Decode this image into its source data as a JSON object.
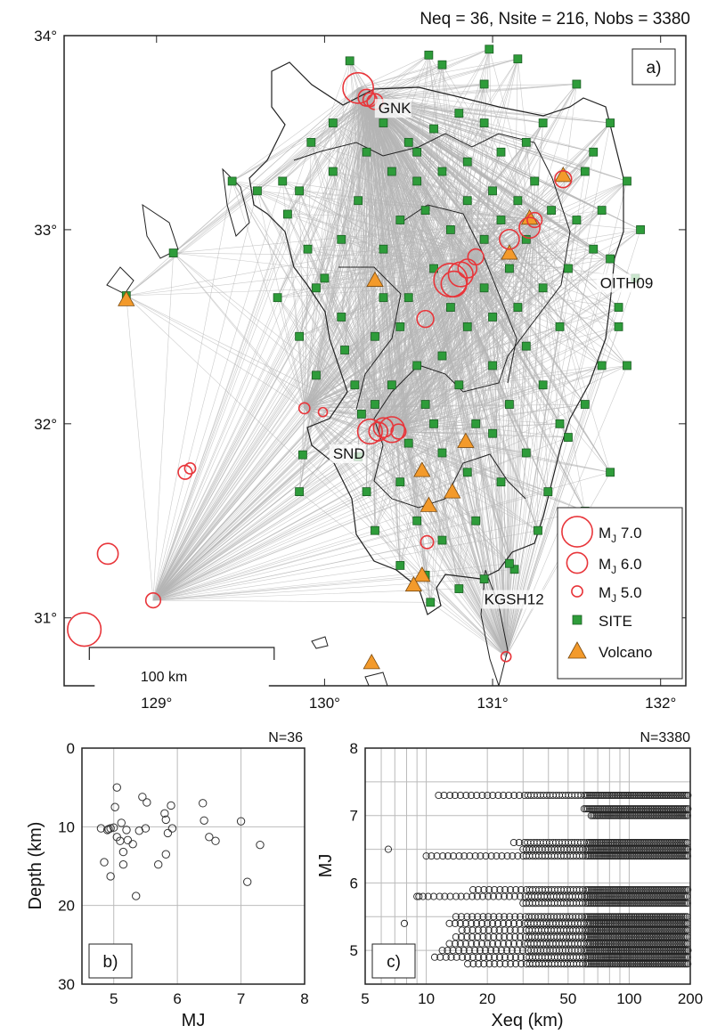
{
  "header": {
    "stats": "Neq = 36,  Nsite = 216,  Nobs = 3380"
  },
  "colors": {
    "eq": "#e8353a",
    "site": "#2e9c3a",
    "volcano": "#f39a2b",
    "ray": "#b5b5b5",
    "coast": "#222222"
  },
  "chart_data": [
    {
      "type": "scatter",
      "panel_label": "a)",
      "xlim": [
        128.45,
        132.15
      ],
      "ylim": [
        30.65,
        34.0
      ],
      "x_ticks": [
        {
          "v": 129,
          "label": "129°"
        },
        {
          "v": 130,
          "label": "130°"
        },
        {
          "v": 131,
          "label": "131°"
        },
        {
          "v": 132,
          "label": "132°"
        }
      ],
      "y_ticks": [
        {
          "v": 31,
          "label": "31°"
        },
        {
          "v": 32,
          "label": "32°"
        },
        {
          "v": 33,
          "label": "33°"
        },
        {
          "v": 34,
          "label": "34°"
        }
      ],
      "scale_bar": {
        "label": "100 km",
        "lon_start": 128.6,
        "lon_end": 129.7,
        "lat": 30.93
      },
      "station_labels": [
        {
          "text": "GNK",
          "lon": 130.32,
          "lat": 33.6
        },
        {
          "text": "OITH09",
          "lon": 131.64,
          "lat": 32.7
        },
        {
          "text": "SND",
          "lon": 130.05,
          "lat": 31.82
        },
        {
          "text": "KGSH12",
          "lon": 130.95,
          "lat": 31.07
        }
      ],
      "legend": {
        "placement": "bottom-right",
        "entries": [
          {
            "label": "MJ 7.0",
            "kind": "eq",
            "mag": 7.0
          },
          {
            "label": "MJ 6.0",
            "kind": "eq",
            "mag": 6.0
          },
          {
            "label": "MJ 5.0",
            "kind": "eq",
            "mag": 5.0
          },
          {
            "label": "SITE",
            "kind": "site"
          },
          {
            "label": "Volcano",
            "kind": "volcano"
          }
        ]
      },
      "earthquakes": [
        {
          "lon": 130.2,
          "lat": 33.73,
          "mag": 7.0
        },
        {
          "lon": 130.25,
          "lat": 33.68,
          "mag": 5.6
        },
        {
          "lon": 130.27,
          "lat": 33.67,
          "mag": 5.3
        },
        {
          "lon": 130.3,
          "lat": 33.66,
          "mag": 5.5
        },
        {
          "lon": 128.57,
          "lat": 30.94,
          "mag": 7.3
        },
        {
          "lon": 128.71,
          "lat": 31.33,
          "mag": 6.0
        },
        {
          "lon": 128.98,
          "lat": 31.09,
          "mag": 5.4
        },
        {
          "lon": 129.17,
          "lat": 31.75,
          "mag": 5.3
        },
        {
          "lon": 129.2,
          "lat": 31.77,
          "mag": 5.0
        },
        {
          "lon": 129.88,
          "lat": 32.08,
          "mag": 5.0
        },
        {
          "lon": 129.99,
          "lat": 32.06,
          "mag": 4.8
        },
        {
          "lon": 130.27,
          "lat": 31.96,
          "mag": 6.4
        },
        {
          "lon": 130.32,
          "lat": 31.96,
          "mag": 5.8
        },
        {
          "lon": 130.35,
          "lat": 31.98,
          "mag": 5.9
        },
        {
          "lon": 130.4,
          "lat": 31.97,
          "mag": 6.5
        },
        {
          "lon": 130.44,
          "lat": 31.96,
          "mag": 5.4
        },
        {
          "lon": 130.6,
          "lat": 32.54,
          "mag": 5.6
        },
        {
          "lon": 130.75,
          "lat": 32.74,
          "mag": 7.3
        },
        {
          "lon": 130.77,
          "lat": 32.72,
          "mag": 6.5
        },
        {
          "lon": 130.81,
          "lat": 32.77,
          "mag": 6.4
        },
        {
          "lon": 130.85,
          "lat": 32.8,
          "mag": 5.8
        },
        {
          "lon": 130.9,
          "lat": 32.86,
          "mag": 5.5
        },
        {
          "lon": 131.1,
          "lat": 32.95,
          "mag": 5.9
        },
        {
          "lon": 131.22,
          "lat": 33.01,
          "mag": 6.0
        },
        {
          "lon": 131.25,
          "lat": 33.05,
          "mag": 5.4
        },
        {
          "lon": 131.42,
          "lat": 33.26,
          "mag": 5.6
        },
        {
          "lon": 130.61,
          "lat": 31.39,
          "mag": 5.2
        },
        {
          "lon": 131.08,
          "lat": 30.8,
          "mag": 4.9
        }
      ],
      "volcanoes": [
        {
          "lon": 128.82,
          "lat": 32.64
        },
        {
          "lon": 130.3,
          "lat": 32.74
        },
        {
          "lon": 130.84,
          "lat": 31.91
        },
        {
          "lon": 131.1,
          "lat": 32.88
        },
        {
          "lon": 131.22,
          "lat": 33.06
        },
        {
          "lon": 131.42,
          "lat": 33.28
        },
        {
          "lon": 130.62,
          "lat": 31.58
        },
        {
          "lon": 130.58,
          "lat": 31.76
        },
        {
          "lon": 130.76,
          "lat": 31.65
        },
        {
          "lon": 130.58,
          "lat": 31.22
        },
        {
          "lon": 130.53,
          "lat": 31.17
        },
        {
          "lon": 130.28,
          "lat": 30.77
        }
      ],
      "sites": [
        {
          "lon": 130.15,
          "lat": 33.87
        },
        {
          "lon": 130.62,
          "lat": 33.9
        },
        {
          "lon": 130.7,
          "lat": 33.85
        },
        {
          "lon": 130.98,
          "lat": 33.93
        },
        {
          "lon": 131.15,
          "lat": 33.88
        },
        {
          "lon": 131.5,
          "lat": 33.75
        },
        {
          "lon": 131.7,
          "lat": 33.55
        },
        {
          "lon": 131.6,
          "lat": 33.4
        },
        {
          "lon": 131.55,
          "lat": 33.3
        },
        {
          "lon": 131.8,
          "lat": 33.25
        },
        {
          "lon": 131.88,
          "lat": 33.0
        },
        {
          "lon": 131.7,
          "lat": 32.85
        },
        {
          "lon": 131.85,
          "lat": 32.75
        },
        {
          "lon": 131.75,
          "lat": 32.5
        },
        {
          "lon": 131.65,
          "lat": 32.3
        },
        {
          "lon": 131.55,
          "lat": 32.1
        },
        {
          "lon": 131.45,
          "lat": 31.93
        },
        {
          "lon": 131.33,
          "lat": 31.65
        },
        {
          "lon": 131.27,
          "lat": 31.45
        },
        {
          "lon": 131.13,
          "lat": 31.25
        },
        {
          "lon": 130.95,
          "lat": 31.2
        },
        {
          "lon": 130.8,
          "lat": 31.15
        },
        {
          "lon": 130.6,
          "lat": 31.22
        },
        {
          "lon": 130.45,
          "lat": 31.27
        },
        {
          "lon": 130.3,
          "lat": 31.45
        },
        {
          "lon": 130.25,
          "lat": 31.65
        },
        {
          "lon": 130.2,
          "lat": 31.83
        },
        {
          "lon": 130.22,
          "lat": 32.05
        },
        {
          "lon": 130.18,
          "lat": 32.2
        },
        {
          "lon": 130.12,
          "lat": 32.38
        },
        {
          "lon": 130.1,
          "lat": 32.55
        },
        {
          "lon": 129.95,
          "lat": 32.7
        },
        {
          "lon": 129.9,
          "lat": 32.9
        },
        {
          "lon": 129.78,
          "lat": 33.08
        },
        {
          "lon": 129.75,
          "lat": 33.25
        },
        {
          "lon": 129.92,
          "lat": 33.45
        },
        {
          "lon": 130.05,
          "lat": 33.55
        },
        {
          "lon": 130.35,
          "lat": 33.55
        },
        {
          "lon": 130.5,
          "lat": 33.45
        },
        {
          "lon": 130.65,
          "lat": 33.52
        },
        {
          "lon": 130.8,
          "lat": 33.6
        },
        {
          "lon": 130.95,
          "lat": 33.55
        },
        {
          "lon": 131.05,
          "lat": 33.4
        },
        {
          "lon": 131.2,
          "lat": 33.45
        },
        {
          "lon": 131.3,
          "lat": 33.55
        },
        {
          "lon": 130.4,
          "lat": 33.3
        },
        {
          "lon": 130.55,
          "lat": 33.25
        },
        {
          "lon": 130.7,
          "lat": 33.3
        },
        {
          "lon": 130.85,
          "lat": 33.35
        },
        {
          "lon": 131.0,
          "lat": 33.2
        },
        {
          "lon": 131.15,
          "lat": 33.15
        },
        {
          "lon": 131.35,
          "lat": 33.1
        },
        {
          "lon": 131.5,
          "lat": 33.05
        },
        {
          "lon": 131.6,
          "lat": 32.9
        },
        {
          "lon": 131.45,
          "lat": 32.8
        },
        {
          "lon": 131.3,
          "lat": 32.7
        },
        {
          "lon": 131.15,
          "lat": 32.6
        },
        {
          "lon": 131.0,
          "lat": 32.55
        },
        {
          "lon": 130.85,
          "lat": 32.5
        },
        {
          "lon": 130.7,
          "lat": 32.35
        },
        {
          "lon": 130.55,
          "lat": 32.3
        },
        {
          "lon": 130.4,
          "lat": 32.2
        },
        {
          "lon": 130.6,
          "lat": 32.1
        },
        {
          "lon": 130.8,
          "lat": 32.2
        },
        {
          "lon": 131.0,
          "lat": 32.3
        },
        {
          "lon": 131.2,
          "lat": 32.4
        },
        {
          "lon": 131.4,
          "lat": 32.5
        },
        {
          "lon": 131.3,
          "lat": 32.2
        },
        {
          "lon": 131.1,
          "lat": 32.1
        },
        {
          "lon": 130.9,
          "lat": 32.0
        },
        {
          "lon": 130.7,
          "lat": 31.85
        },
        {
          "lon": 130.5,
          "lat": 31.9
        },
        {
          "lon": 130.45,
          "lat": 31.7
        },
        {
          "lon": 130.55,
          "lat": 31.5
        },
        {
          "lon": 130.7,
          "lat": 31.4
        },
        {
          "lon": 130.9,
          "lat": 31.5
        },
        {
          "lon": 131.05,
          "lat": 31.7
        },
        {
          "lon": 131.2,
          "lat": 31.85
        },
        {
          "lon": 131.4,
          "lat": 32.0
        },
        {
          "lon": 130.35,
          "lat": 32.9
        },
        {
          "lon": 130.45,
          "lat": 33.05
        },
        {
          "lon": 130.6,
          "lat": 33.1
        },
        {
          "lon": 130.75,
          "lat": 33.0
        },
        {
          "lon": 130.95,
          "lat": 32.95
        },
        {
          "lon": 131.1,
          "lat": 32.8
        },
        {
          "lon": 130.5,
          "lat": 32.65
        },
        {
          "lon": 130.65,
          "lat": 32.8
        },
        {
          "lon": 130.2,
          "lat": 33.15
        },
        {
          "lon": 130.05,
          "lat": 33.3
        },
        {
          "lon": 129.85,
          "lat": 33.2
        },
        {
          "lon": 129.6,
          "lat": 33.2
        },
        {
          "lon": 129.45,
          "lat": 33.25
        },
        {
          "lon": 129.1,
          "lat": 32.88
        },
        {
          "lon": 128.82,
          "lat": 32.66
        },
        {
          "lon": 129.72,
          "lat": 32.65
        },
        {
          "lon": 129.85,
          "lat": 32.45
        },
        {
          "lon": 129.95,
          "lat": 32.25
        },
        {
          "lon": 130.0,
          "lat": 32.75
        },
        {
          "lon": 130.3,
          "lat": 32.45
        },
        {
          "lon": 130.45,
          "lat": 32.5
        },
        {
          "lon": 129.87,
          "lat": 31.84
        },
        {
          "lon": 129.85,
          "lat": 31.65
        },
        {
          "lon": 130.35,
          "lat": 32.65
        },
        {
          "lon": 131.8,
          "lat": 32.3
        },
        {
          "lon": 131.7,
          "lat": 31.75
        },
        {
          "lon": 131.55,
          "lat": 31.55
        },
        {
          "lon": 130.63,
          "lat": 31.08
        },
        {
          "lon": 131.1,
          "lat": 31.28
        },
        {
          "lon": 130.95,
          "lat": 33.75
        },
        {
          "lon": 131.25,
          "lat": 33.25
        },
        {
          "lon": 131.65,
          "lat": 33.1
        },
        {
          "lon": 131.75,
          "lat": 32.6
        },
        {
          "lon": 130.25,
          "lat": 33.4
        },
        {
          "lon": 130.1,
          "lat": 32.95
        },
        {
          "lon": 130.3,
          "lat": 32.1
        },
        {
          "lon": 130.85,
          "lat": 31.75
        },
        {
          "lon": 131.0,
          "lat": 31.95
        },
        {
          "lon": 130.65,
          "lat": 32.0
        },
        {
          "lon": 130.75,
          "lat": 32.6
        },
        {
          "lon": 130.95,
          "lat": 32.7
        },
        {
          "lon": 131.2,
          "lat": 32.95
        },
        {
          "lon": 130.85,
          "lat": 33.15
        },
        {
          "lon": 130.55,
          "lat": 33.4
        },
        {
          "lon": 131.05,
          "lat": 33.05
        }
      ]
    },
    {
      "type": "scatter",
      "panel_label": "b)",
      "n_label": "N=36",
      "xlabel": "MJ",
      "ylabel": "Depth (km)",
      "xlim": [
        4.5,
        8
      ],
      "ylim": [
        0,
        30
      ],
      "y_inverted": true,
      "x_ticks": [
        5,
        6,
        7,
        8
      ],
      "y_ticks": [
        0,
        10,
        20,
        30
      ],
      "grid": true,
      "points": [
        {
          "x": 4.8,
          "y": 10.2
        },
        {
          "x": 4.85,
          "y": 14.5
        },
        {
          "x": 4.9,
          "y": 10.4
        },
        {
          "x": 4.92,
          "y": 10.3
        },
        {
          "x": 4.95,
          "y": 16.3
        },
        {
          "x": 5.0,
          "y": 10.1
        },
        {
          "x": 5.02,
          "y": 7.5
        },
        {
          "x": 5.05,
          "y": 5.0
        },
        {
          "x": 5.05,
          "y": 11.3
        },
        {
          "x": 5.1,
          "y": 11.8
        },
        {
          "x": 5.12,
          "y": 9.5
        },
        {
          "x": 5.15,
          "y": 13.2
        },
        {
          "x": 5.15,
          "y": 14.8
        },
        {
          "x": 5.2,
          "y": 10.4
        },
        {
          "x": 5.22,
          "y": 11.7
        },
        {
          "x": 5.3,
          "y": 12.2
        },
        {
          "x": 5.35,
          "y": 18.8
        },
        {
          "x": 5.4,
          "y": 10.5
        },
        {
          "x": 5.45,
          "y": 6.2
        },
        {
          "x": 5.5,
          "y": 10.2
        },
        {
          "x": 5.52,
          "y": 6.9
        },
        {
          "x": 5.7,
          "y": 14.8
        },
        {
          "x": 5.8,
          "y": 8.3
        },
        {
          "x": 5.82,
          "y": 9.1
        },
        {
          "x": 5.82,
          "y": 13.5
        },
        {
          "x": 5.85,
          "y": 10.8
        },
        {
          "x": 5.9,
          "y": 7.3
        },
        {
          "x": 5.92,
          "y": 10.2
        },
        {
          "x": 6.4,
          "y": 7.0
        },
        {
          "x": 6.42,
          "y": 9.2
        },
        {
          "x": 6.5,
          "y": 11.3
        },
        {
          "x": 6.6,
          "y": 11.8
        },
        {
          "x": 7.0,
          "y": 9.3
        },
        {
          "x": 7.1,
          "y": 17.0
        },
        {
          "x": 7.3,
          "y": 12.3
        },
        {
          "x": 4.95,
          "y": 10.2
        }
      ]
    },
    {
      "type": "scatter",
      "panel_label": "c)",
      "n_label": "N=3380",
      "xlabel": "Xeq (km)",
      "ylabel": "MJ",
      "x_scale": "log",
      "xlim": [
        5,
        200
      ],
      "ylim": [
        4.5,
        8
      ],
      "x_ticks": [
        5,
        10,
        20,
        50,
        100,
        200
      ],
      "y_ticks": [
        5,
        6,
        7,
        8
      ],
      "grid": true,
      "magnitude_rows": [
        {
          "mag": 7.3,
          "x_min": 11.5,
          "x_max": 195
        },
        {
          "mag": 7.1,
          "x_min": 60,
          "x_max": 195
        },
        {
          "mag": 7.0,
          "x_min": 65,
          "x_max": 195
        },
        {
          "mag": 6.6,
          "x_min": 27,
          "x_max": 195
        },
        {
          "mag": 6.5,
          "x_min": 30,
          "x_max": 195
        },
        {
          "mag": 6.4,
          "x_min": 10,
          "x_max": 195
        },
        {
          "mag": 5.9,
          "x_min": 17,
          "x_max": 195
        },
        {
          "mag": 5.8,
          "x_min": 9,
          "x_max": 195
        },
        {
          "mag": 5.7,
          "x_min": 30,
          "x_max": 195
        },
        {
          "mag": 5.5,
          "x_min": 14,
          "x_max": 195
        },
        {
          "mag": 5.4,
          "x_min": 13,
          "x_max": 195
        },
        {
          "mag": 5.3,
          "x_min": 15,
          "x_max": 195
        },
        {
          "mag": 5.2,
          "x_min": 14,
          "x_max": 195
        },
        {
          "mag": 5.1,
          "x_min": 13,
          "x_max": 195
        },
        {
          "mag": 5.0,
          "x_min": 12,
          "x_max": 195
        },
        {
          "mag": 4.9,
          "x_min": 11,
          "x_max": 195
        },
        {
          "mag": 4.8,
          "x_min": 16,
          "x_max": 195
        }
      ],
      "extra_points": [
        {
          "x": 6.5,
          "y": 6.5
        },
        {
          "x": 7.8,
          "y": 5.4
        },
        {
          "x": 9.2,
          "y": 5.8
        }
      ]
    }
  ]
}
